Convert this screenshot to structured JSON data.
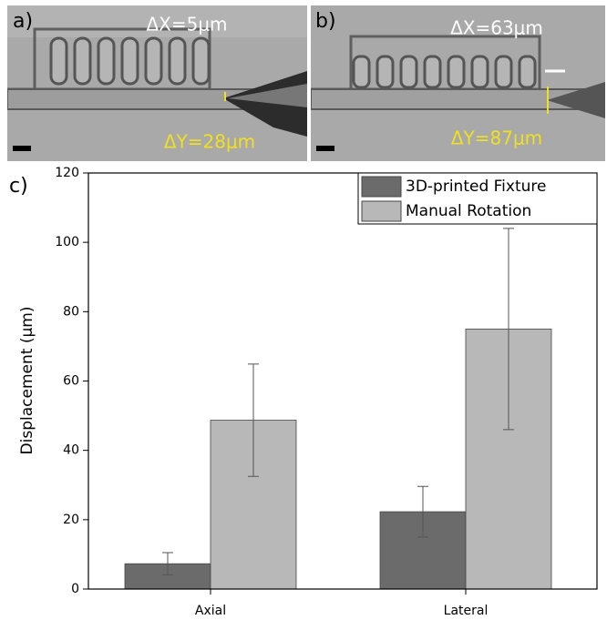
{
  "panels": [
    {
      "label": "a)",
      "dx": "ΔX=5μm",
      "dy": "ΔY=28μm"
    },
    {
      "label": "b)",
      "dx": "ΔX=63μm",
      "dy": "ΔY=87μm"
    }
  ],
  "chart_data": {
    "type": "bar",
    "panel_label": "c)",
    "ylabel": "Displacement (μm)",
    "categories": [
      "Axial",
      "Lateral"
    ],
    "series": [
      {
        "name": "3D-printed Fixture",
        "color": "#6b6b6b",
        "values": [
          7.3,
          22.3
        ],
        "errors": [
          3.2,
          7.3
        ]
      },
      {
        "name": "Manual Rotation",
        "color": "#b8b8b8",
        "values": [
          48.7,
          75
        ],
        "errors": [
          16.2,
          29
        ]
      }
    ],
    "ylim": [
      0,
      120
    ],
    "yticks": [
      0,
      20,
      40,
      60,
      80,
      100,
      120
    ],
    "legend": "upper right"
  }
}
